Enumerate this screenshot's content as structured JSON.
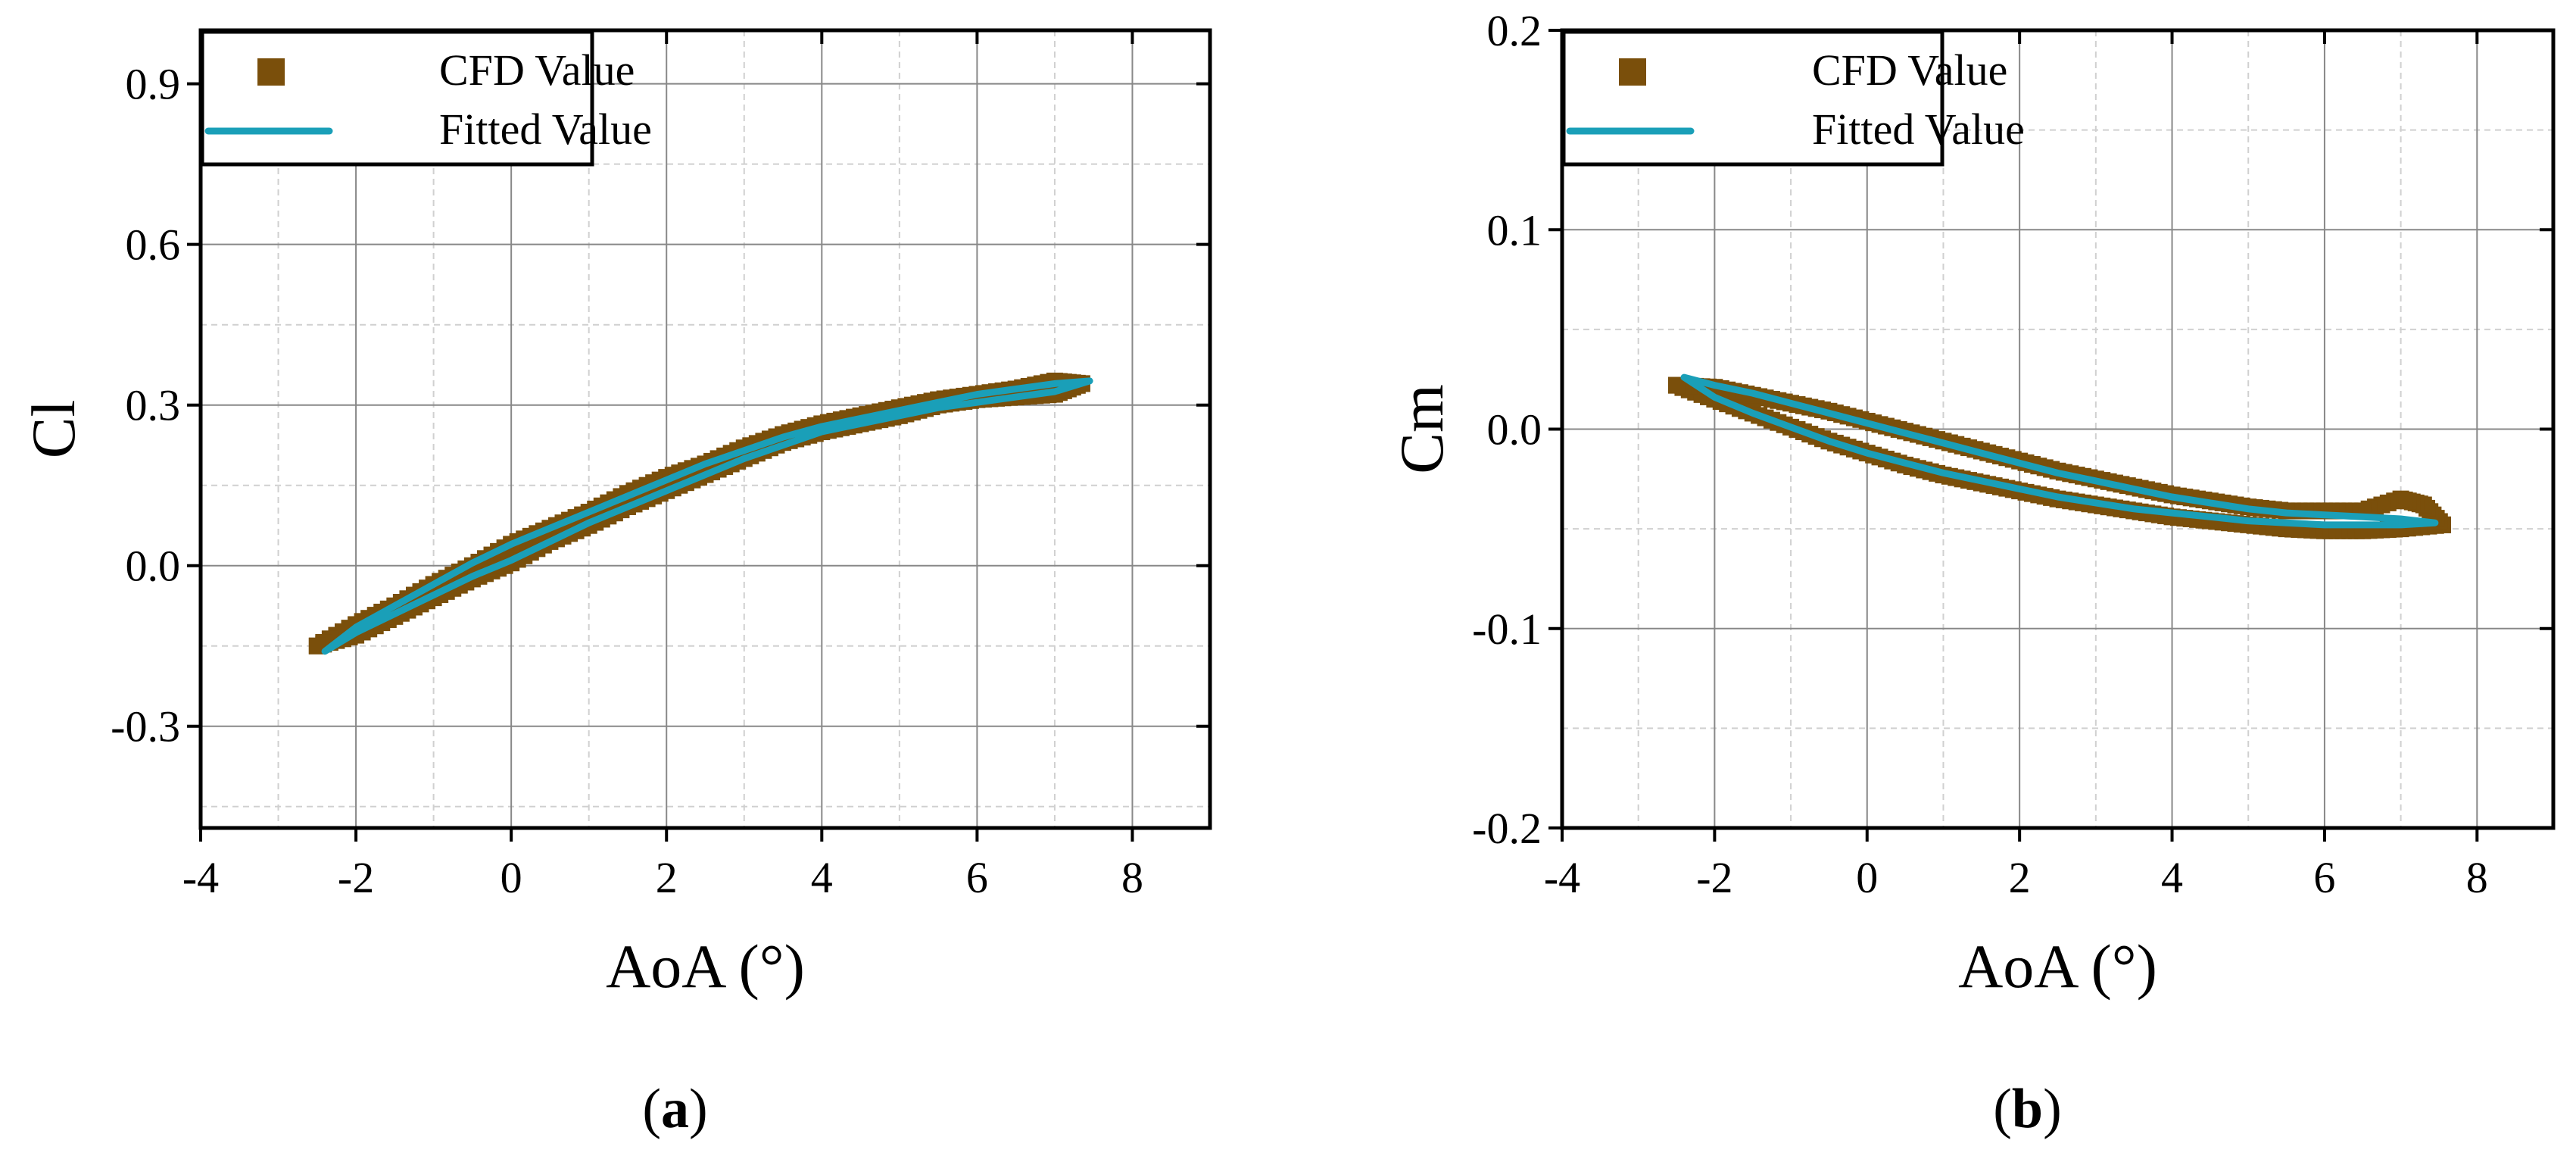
{
  "colors": {
    "cfd": "#7a4f0b",
    "fitted": "#1a9fb8",
    "axis": "#000000",
    "grid_major": "#888888",
    "grid_minor": "#d0d0d0"
  },
  "chart_data": [
    {
      "type": "scatter",
      "panel_label": "a",
      "xlabel": "AoA (°)",
      "ylabel": "Cl",
      "xlim": [
        -4,
        9
      ],
      "ylim": [
        -0.49,
        1.0
      ],
      "xticks": [
        -4,
        -2,
        0,
        2,
        4,
        6,
        8
      ],
      "yticks": [
        -0.3,
        0.0,
        0.3,
        0.6,
        0.9
      ],
      "ytick_labels": [
        "-0.3",
        "0.0",
        "0.3",
        "0.6",
        "0.9"
      ],
      "grid": true,
      "legend": {
        "position": "top-left",
        "entries": [
          "CFD Value",
          "Fitted Value"
        ]
      },
      "series": [
        {
          "name": "CFD Value",
          "style": "square-markers",
          "upstroke": [
            [
              -2.5,
              -0.15
            ],
            [
              -2.0,
              -0.13
            ],
            [
              -1.5,
              -0.095
            ],
            [
              -1.0,
              -0.06
            ],
            [
              -0.5,
              -0.025
            ],
            [
              0.0,
              0.005
            ],
            [
              0.5,
              0.045
            ],
            [
              1.0,
              0.075
            ],
            [
              1.5,
              0.11
            ],
            [
              2.0,
              0.14
            ],
            [
              2.5,
              0.17
            ],
            [
              3.0,
              0.2
            ],
            [
              3.5,
              0.23
            ],
            [
              4.0,
              0.25
            ],
            [
              4.5,
              0.265
            ],
            [
              5.0,
              0.28
            ],
            [
              5.5,
              0.3
            ],
            [
              6.0,
              0.31
            ],
            [
              6.5,
              0.315
            ],
            [
              7.0,
              0.32
            ],
            [
              7.35,
              0.34
            ]
          ],
          "downstroke": [
            [
              7.35,
              0.34
            ],
            [
              7.0,
              0.345
            ],
            [
              6.5,
              0.33
            ],
            [
              6.0,
              0.32
            ],
            [
              5.5,
              0.31
            ],
            [
              5.0,
              0.295
            ],
            [
              4.5,
              0.28
            ],
            [
              4.0,
              0.265
            ],
            [
              3.5,
              0.245
            ],
            [
              3.0,
              0.22
            ],
            [
              2.5,
              0.19
            ],
            [
              2.0,
              0.165
            ],
            [
              1.5,
              0.135
            ],
            [
              1.0,
              0.1
            ],
            [
              0.5,
              0.07
            ],
            [
              0.0,
              0.04
            ],
            [
              -0.5,
              0.0
            ],
            [
              -1.0,
              -0.035
            ],
            [
              -1.5,
              -0.075
            ],
            [
              -2.0,
              -0.11
            ],
            [
              -2.5,
              -0.15
            ]
          ]
        },
        {
          "name": "Fitted Value",
          "style": "line",
          "upstroke": [
            [
              -2.4,
              -0.16
            ],
            [
              -2.0,
              -0.125
            ],
            [
              -1.5,
              -0.09
            ],
            [
              -1.0,
              -0.055
            ],
            [
              -0.5,
              -0.02
            ],
            [
              0.0,
              0.01
            ],
            [
              0.5,
              0.045
            ],
            [
              1.0,
              0.08
            ],
            [
              1.5,
              0.11
            ],
            [
              2.0,
              0.14
            ],
            [
              2.5,
              0.17
            ],
            [
              3.0,
              0.2
            ],
            [
              3.5,
              0.225
            ],
            [
              4.0,
              0.25
            ],
            [
              4.5,
              0.265
            ],
            [
              5.0,
              0.28
            ],
            [
              5.5,
              0.295
            ],
            [
              6.0,
              0.305
            ],
            [
              6.5,
              0.315
            ],
            [
              7.0,
              0.325
            ],
            [
              7.45,
              0.345
            ]
          ],
          "downstroke": [
            [
              7.45,
              0.345
            ],
            [
              7.0,
              0.34
            ],
            [
              6.5,
              0.33
            ],
            [
              6.0,
              0.32
            ],
            [
              5.5,
              0.305
            ],
            [
              5.0,
              0.29
            ],
            [
              4.5,
              0.275
            ],
            [
              4.0,
              0.26
            ],
            [
              3.5,
              0.24
            ],
            [
              3.0,
              0.215
            ],
            [
              2.5,
              0.19
            ],
            [
              2.0,
              0.16
            ],
            [
              1.5,
              0.13
            ],
            [
              1.0,
              0.1
            ],
            [
              0.5,
              0.07
            ],
            [
              0.0,
              0.04
            ],
            [
              -0.5,
              0.005
            ],
            [
              -1.0,
              -0.035
            ],
            [
              -1.5,
              -0.075
            ],
            [
              -2.0,
              -0.115
            ],
            [
              -2.4,
              -0.16
            ]
          ]
        }
      ]
    },
    {
      "type": "scatter",
      "panel_label": "b",
      "xlabel": "AoA (°)",
      "ylabel": "Cm",
      "xlim": [
        -4,
        9
      ],
      "ylim": [
        -0.2,
        0.2
      ],
      "xticks": [
        -4,
        -2,
        0,
        2,
        4,
        6,
        8
      ],
      "yticks": [
        -0.2,
        -0.1,
        0.0,
        0.1,
        0.2
      ],
      "ytick_labels": [
        "-0.2",
        "-0.1",
        "0.0",
        "0.1",
        "0.2"
      ],
      "grid": true,
      "legend": {
        "position": "top-left",
        "entries": [
          "CFD Value",
          "Fitted Value"
        ]
      },
      "series": [
        {
          "name": "CFD Value",
          "style": "square-markers",
          "upstroke": [
            [
              -2.5,
              0.022
            ],
            [
              -2.0,
              0.015
            ],
            [
              -1.5,
              0.008
            ],
            [
              -1.0,
              0.001
            ],
            [
              -0.5,
              -0.006
            ],
            [
              0.0,
              -0.012
            ],
            [
              0.5,
              -0.018
            ],
            [
              1.0,
              -0.023
            ],
            [
              1.5,
              -0.027
            ],
            [
              2.0,
              -0.031
            ],
            [
              2.5,
              -0.035
            ],
            [
              3.0,
              -0.038
            ],
            [
              3.5,
              -0.041
            ],
            [
              4.0,
              -0.044
            ],
            [
              4.5,
              -0.046
            ],
            [
              5.0,
              -0.048
            ],
            [
              5.5,
              -0.05
            ],
            [
              6.0,
              -0.051
            ],
            [
              6.5,
              -0.051
            ],
            [
              7.0,
              -0.05
            ],
            [
              7.55,
              -0.048
            ]
          ],
          "downstroke": [
            [
              7.55,
              -0.048
            ],
            [
              7.3,
              -0.038
            ],
            [
              7.0,
              -0.035
            ],
            [
              6.5,
              -0.041
            ],
            [
              6.0,
              -0.041
            ],
            [
              5.5,
              -0.041
            ],
            [
              5.0,
              -0.039
            ],
            [
              4.5,
              -0.036
            ],
            [
              4.0,
              -0.033
            ],
            [
              3.5,
              -0.029
            ],
            [
              3.0,
              -0.025
            ],
            [
              2.5,
              -0.021
            ],
            [
              2.0,
              -0.016
            ],
            [
              1.5,
              -0.011
            ],
            [
              1.0,
              -0.006
            ],
            [
              0.5,
              -0.001
            ],
            [
              0.0,
              0.004
            ],
            [
              -0.5,
              0.009
            ],
            [
              -1.0,
              0.013
            ],
            [
              -1.5,
              0.017
            ],
            [
              -2.0,
              0.021
            ],
            [
              -2.5,
              0.022
            ]
          ]
        },
        {
          "name": "Fitted Value",
          "style": "line",
          "upstroke": [
            [
              -2.4,
              0.026
            ],
            [
              -2.0,
              0.016
            ],
            [
              -1.5,
              0.008
            ],
            [
              -1.0,
              0.001
            ],
            [
              -0.5,
              -0.006
            ],
            [
              0.0,
              -0.012
            ],
            [
              0.5,
              -0.017
            ],
            [
              1.0,
              -0.022
            ],
            [
              1.5,
              -0.026
            ],
            [
              2.0,
              -0.03
            ],
            [
              2.5,
              -0.034
            ],
            [
              3.0,
              -0.037
            ],
            [
              3.5,
              -0.04
            ],
            [
              4.0,
              -0.042
            ],
            [
              4.5,
              -0.044
            ],
            [
              5.0,
              -0.046
            ],
            [
              5.5,
              -0.047
            ],
            [
              6.0,
              -0.048
            ],
            [
              6.5,
              -0.048
            ],
            [
              7.0,
              -0.048
            ],
            [
              7.45,
              -0.047
            ]
          ],
          "downstroke": [
            [
              7.45,
              -0.047
            ],
            [
              7.0,
              -0.045
            ],
            [
              6.5,
              -0.044
            ],
            [
              6.0,
              -0.043
            ],
            [
              5.5,
              -0.042
            ],
            [
              5.0,
              -0.04
            ],
            [
              4.5,
              -0.037
            ],
            [
              4.0,
              -0.034
            ],
            [
              3.5,
              -0.03
            ],
            [
              3.0,
              -0.026
            ],
            [
              2.5,
              -0.022
            ],
            [
              2.0,
              -0.017
            ],
            [
              1.5,
              -0.012
            ],
            [
              1.0,
              -0.007
            ],
            [
              0.5,
              -0.002
            ],
            [
              0.0,
              0.003
            ],
            [
              -0.5,
              0.008
            ],
            [
              -1.0,
              0.013
            ],
            [
              -1.5,
              0.018
            ],
            [
              -2.0,
              0.022
            ],
            [
              -2.4,
              0.026
            ]
          ]
        }
      ]
    }
  ]
}
